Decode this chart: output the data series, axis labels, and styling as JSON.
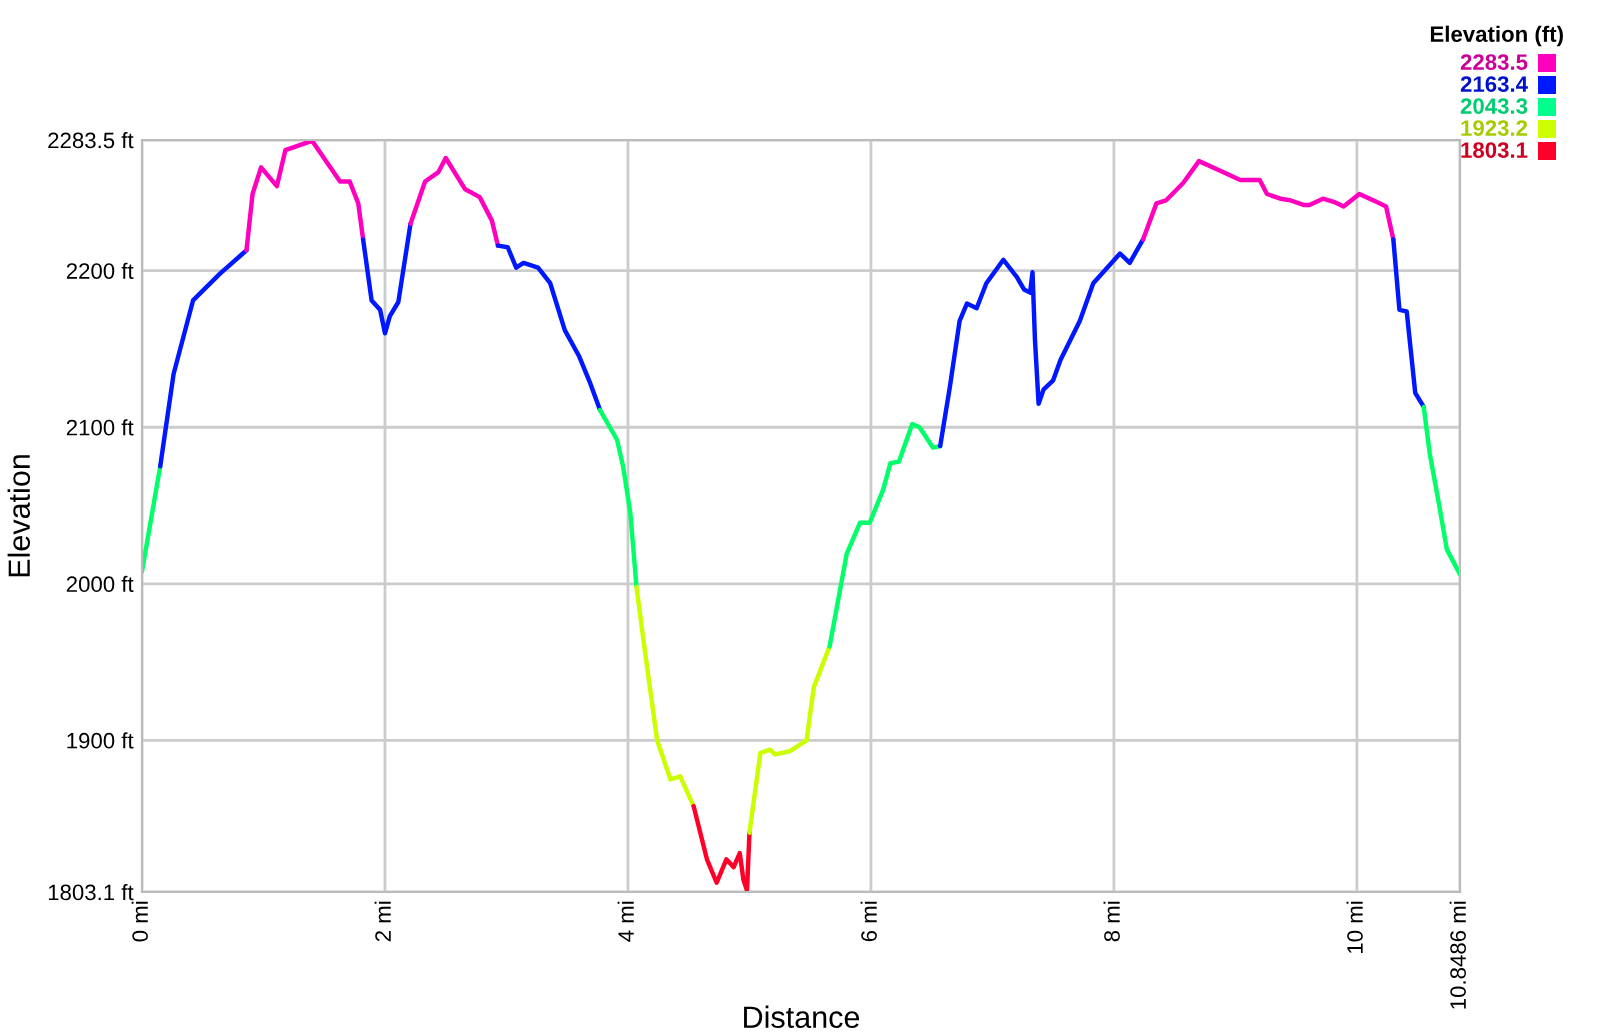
{
  "chart_data": {
    "type": "line",
    "xlabel": "Distance",
    "ylabel": "Elevation",
    "clabel": "Elevation (ft)",
    "series": [
      {
        "color": "#00ff68",
        "x": [
          0,
          0.15
        ],
        "values": [
          2008,
          2075
        ]
      },
      {
        "color": "#0018ff",
        "x": [
          0.15,
          0.26,
          0.42,
          0.64,
          0.83,
          0.86
        ],
        "values": [
          2075,
          2134,
          2181,
          2198,
          2211,
          2213
        ]
      },
      {
        "color": "#ff00bf",
        "x": [
          0.86,
          0.91,
          0.98,
          1.11,
          1.18,
          1.4,
          1.63,
          1.71,
          1.78,
          1.82
        ],
        "values": [
          2213,
          2249,
          2266,
          2254,
          2277,
          2283,
          2257,
          2257,
          2243,
          2220
        ]
      },
      {
        "color": "#0018ff",
        "x": [
          1.82,
          1.89,
          1.96,
          2.0,
          2.04,
          2.11,
          2.21
        ],
        "values": [
          2220,
          2181,
          2175,
          2160,
          2171,
          2180,
          2230
        ]
      },
      {
        "color": "#ff00bf",
        "x": [
          2.21,
          2.33,
          2.44,
          2.5,
          2.66,
          2.78,
          2.88,
          2.93
        ],
        "values": [
          2230,
          2257,
          2263,
          2272,
          2252,
          2247,
          2232,
          2216
        ]
      },
      {
        "color": "#0018ff",
        "x": [
          2.93,
          3.01,
          3.08,
          3.14,
          3.26,
          3.36,
          3.48,
          3.6,
          3.69,
          3.77
        ],
        "values": [
          2216,
          2215,
          2202,
          2205,
          2202,
          2192,
          2162,
          2145,
          2128,
          2111
        ]
      },
      {
        "color": "#00ff68",
        "x": [
          3.77,
          3.91,
          3.96,
          4.02,
          4.07
        ],
        "values": [
          2111,
          2092,
          2075,
          2045,
          1998
        ]
      },
      {
        "color": "#cbff00",
        "x": [
          4.07,
          4.15,
          4.24,
          4.35,
          4.43,
          4.54
        ],
        "values": [
          1998,
          1951,
          1900,
          1875,
          1877,
          1858
        ]
      },
      {
        "color": "#ff0029",
        "x": [
          4.54,
          4.65,
          4.73,
          4.81,
          4.87,
          4.92,
          4.95,
          4.98,
          5.0
        ],
        "values": [
          1858,
          1824,
          1809,
          1824,
          1819,
          1828,
          1811,
          1804,
          1841
        ]
      },
      {
        "color": "#cbff00",
        "x": [
          5.0,
          5.09,
          5.17,
          5.21,
          5.33,
          5.47,
          5.53,
          5.66
        ],
        "values": [
          1841,
          1892,
          1894,
          1891,
          1893,
          1900,
          1934,
          1960
        ]
      },
      {
        "color": "#00ff68",
        "x": [
          5.66,
          5.8,
          5.91,
          5.99,
          6.1,
          6.16,
          6.23,
          6.34,
          6.4,
          6.51,
          6.57
        ],
        "values": [
          1960,
          2019,
          2039,
          2039,
          2060,
          2077,
          2078,
          2102,
          2100,
          2087,
          2088
        ]
      },
      {
        "color": "#0018ff",
        "x": [
          6.57,
          6.65,
          6.73,
          6.79,
          6.87,
          6.95,
          7.09,
          7.2,
          7.26,
          7.31,
          7.33,
          7.35,
          7.38,
          7.42,
          7.5,
          7.56,
          7.72,
          7.83,
          8.05,
          8.13,
          8.24
        ],
        "values": [
          2088,
          2126,
          2168,
          2179,
          2176,
          2192,
          2207,
          2196,
          2188,
          2186,
          2199,
          2156,
          2115,
          2124,
          2130,
          2143,
          2168,
          2192,
          2211,
          2205,
          2220
        ]
      },
      {
        "color": "#ff00bf",
        "x": [
          8.24,
          8.35,
          8.43,
          8.57,
          8.7,
          8.87,
          9.04,
          9.2,
          9.26,
          9.37,
          9.45,
          9.56,
          9.61,
          9.72,
          9.81,
          9.89,
          10.02,
          10.16,
          10.24,
          10.3
        ],
        "values": [
          2220,
          2243,
          2245,
          2256,
          2270,
          2264,
          2258,
          2258,
          2249,
          2246,
          2245,
          2242,
          2242,
          2246,
          2244,
          2241,
          2249,
          2244,
          2241,
          2220
        ]
      },
      {
        "color": "#0018ff",
        "x": [
          10.3,
          10.35,
          10.41,
          10.48,
          10.55
        ],
        "values": [
          2220,
          2175,
          2174,
          2122,
          2113
        ]
      },
      {
        "color": "#00ff68",
        "x": [
          10.55,
          10.6,
          10.68,
          10.74,
          10.8486
        ],
        "values": [
          2113,
          2083,
          2049,
          2022,
          2006
        ]
      }
    ],
    "xlim": [
      0,
      10.8486
    ],
    "xticks": [
      {
        "value": 0,
        "label": "0 mi"
      },
      {
        "value": 2,
        "label": "2 mi"
      },
      {
        "value": 4,
        "label": "4 mi"
      },
      {
        "value": 6,
        "label": "6 mi"
      },
      {
        "value": 8,
        "label": "8 mi"
      },
      {
        "value": 10,
        "label": "10 mi"
      },
      {
        "value": 10.8486,
        "label": "10.8486 mi"
      }
    ],
    "ylim": [
      1803.1,
      2283.5
    ],
    "yticks": [
      {
        "value": 1803.1,
        "label": "1803.1 ft"
      },
      {
        "value": 1900,
        "label": "1900 ft"
      },
      {
        "value": 2000,
        "label": "2000 ft"
      },
      {
        "value": 2100,
        "label": "2100 ft"
      },
      {
        "value": 2200,
        "label": "2200 ft"
      },
      {
        "value": 2283.5,
        "label": "2283.5 ft"
      }
    ],
    "clim": [
      1803.1,
      2283.5
    ],
    "cticks": [
      2283.5,
      2163.4,
      2043.3,
      1923.2,
      1803.1
    ],
    "grid": true
  }
}
